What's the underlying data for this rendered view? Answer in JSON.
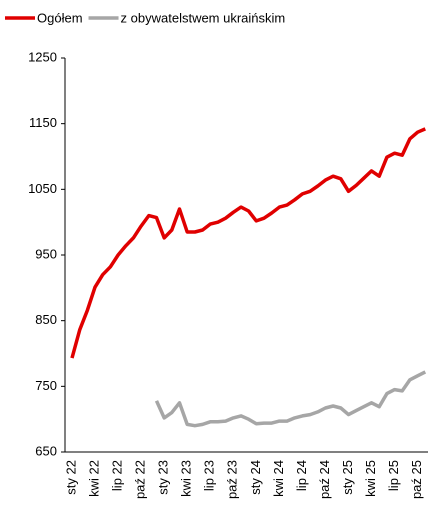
{
  "chart_data": {
    "type": "line",
    "categories": [
      "sty 22",
      null,
      null,
      "kwi 22",
      null,
      null,
      "lip 22",
      null,
      null,
      "paź 22",
      null,
      null,
      "sty 23",
      null,
      null,
      "kwi 23",
      null,
      null,
      "lip 23",
      null,
      null,
      "paź 23",
      null,
      null,
      "sty 24",
      null,
      null,
      "kwi 24",
      null,
      null,
      "lip 24",
      null,
      null,
      "paź 24",
      null,
      null,
      "sty 25",
      null,
      null,
      "kwi 25",
      null,
      null,
      "lip 25",
      null,
      null,
      "paź 25",
      null
    ],
    "series": [
      {
        "name": "Ogółem",
        "color": "#e00000",
        "values": [
          793,
          836,
          866,
          901,
          920,
          932,
          950,
          964,
          976,
          994,
          1010,
          1007,
          976,
          988,
          1020,
          985,
          985,
          988,
          997,
          1000,
          1006,
          1015,
          1023,
          1017,
          1002,
          1006,
          1014,
          1023,
          1026,
          1034,
          1043,
          1047,
          1055,
          1064,
          1070,
          1066,
          1047,
          1056,
          1067,
          1078,
          1070,
          1099,
          1105,
          1102,
          1127,
          1137,
          1142
        ]
      },
      {
        "name": "z obywatelstwem ukraińskim",
        "color": "#a6a6a6",
        "values": [
          null,
          null,
          null,
          null,
          null,
          null,
          null,
          null,
          null,
          null,
          null,
          728,
          702,
          710,
          725,
          692,
          690,
          692,
          696,
          696,
          697,
          702,
          705,
          700,
          693,
          694,
          694,
          697,
          697,
          702,
          705,
          707,
          711,
          717,
          720,
          717,
          707,
          713,
          719,
          725,
          719,
          739,
          745,
          743,
          760,
          766,
          772
        ]
      }
    ],
    "ylim": [
      650,
      1250
    ],
    "yticks": [
      650,
      750,
      850,
      950,
      1050,
      1150,
      1250
    ],
    "legend": "top"
  }
}
